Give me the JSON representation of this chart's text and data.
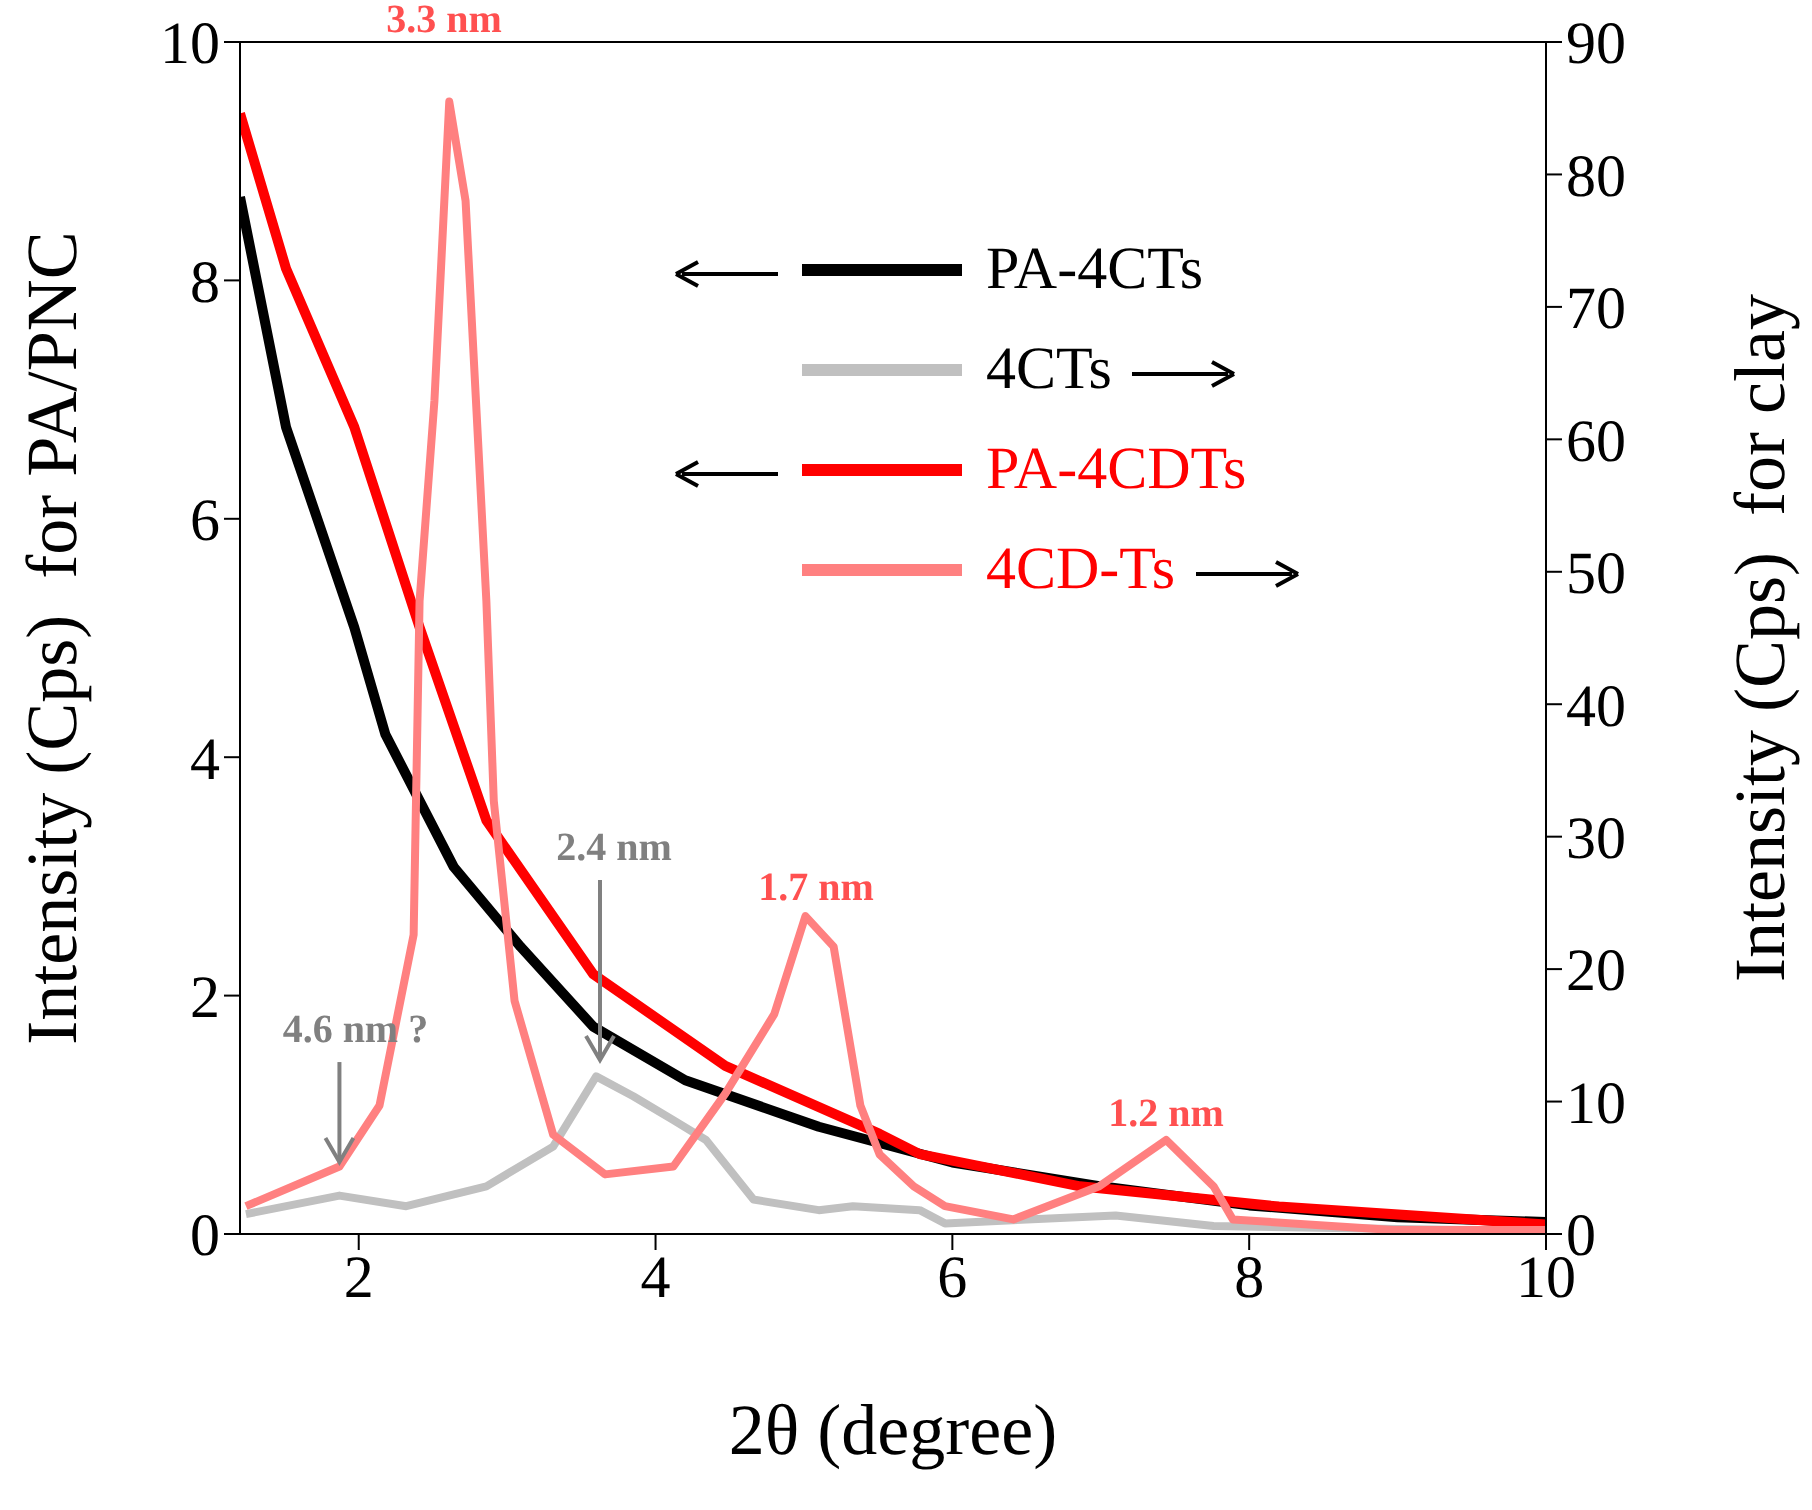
{
  "chart_data": {
    "type": "line",
    "xlabel": "2θ (degree)",
    "ylabel": "Intensity (Cps)  for PA/PNC",
    "y2label": "Intensity (Cps)  for clay",
    "xlim": [
      1.2,
      10
    ],
    "xticks": [
      2,
      4,
      6,
      8,
      10
    ],
    "ylim": [
      0,
      10
    ],
    "yticks": [
      0,
      2,
      4,
      6,
      8,
      10
    ],
    "y2lim": [
      0,
      90
    ],
    "y2ticks": [
      0,
      10,
      20,
      30,
      40,
      50,
      60,
      70,
      80,
      90
    ],
    "legend": "top right",
    "series": [
      {
        "name": "PA-4CTs",
        "color": "#000000",
        "x": [
          1.2,
          1.51,
          1.97,
          2.18,
          2.64,
          3.09,
          3.58,
          4.2,
          5.1,
          6,
          7,
          8,
          9,
          10
        ],
        "values": [
          8.7,
          6.77,
          5.09,
          4.19,
          3.08,
          2.41,
          1.74,
          1.29,
          0.9,
          0.6,
          0.4,
          0.24,
          0.14,
          0.1
        ]
      },
      {
        "name": "4CTs",
        "color": "#c0c0c0",
        "axis": "y2",
        "x": [
          1.24,
          1.87,
          2.32,
          2.86,
          3.31,
          3.6,
          3.85,
          4.12,
          4.34,
          4.66,
          5.1,
          5.33,
          5.78,
          5.95,
          7.1,
          7.76,
          10
        ],
        "values": [
          1.5,
          2.9,
          2.1,
          3.6,
          6.6,
          11.9,
          10.4,
          8.6,
          7.1,
          2.6,
          1.8,
          2.1,
          1.8,
          0.8,
          1.4,
          0.6,
          0.2
        ]
      },
      {
        "name": "PA-4CDTs",
        "color": "#ff0000",
        "x": [
          1.2,
          1.51,
          1.97,
          2.41,
          2.86,
          3.58,
          4.47,
          5.51,
          5.78,
          6.86,
          8.2,
          10
        ],
        "values": [
          9.4,
          8.1,
          6.77,
          5.09,
          3.47,
          2.18,
          1.41,
          0.84,
          0.67,
          0.4,
          0.23,
          0.08
        ]
      },
      {
        "name": "4CD-Ts",
        "color": "#ff8080",
        "axis": "y2",
        "x": [
          1.24,
          1.87,
          2.14,
          2.37,
          2.41,
          2.51,
          2.61,
          2.72,
          2.86,
          2.91,
          3.05,
          3.31,
          3.66,
          4.12,
          4.47,
          4.8,
          5.01,
          5.2,
          5.38,
          5.51,
          5.74,
          5.95,
          6.41,
          6.99,
          7.44,
          7.76,
          7.89,
          8.97,
          10
        ],
        "values": [
          2.1,
          5.1,
          9.7,
          22.6,
          47.8,
          62.9,
          85.5,
          78,
          47.8,
          32.7,
          17.6,
          7.5,
          4.5,
          5.1,
          10.6,
          16.6,
          24,
          21.7,
          9.7,
          6,
          3.6,
          2.1,
          1.1,
          3.6,
          7.1,
          3.6,
          1.1,
          0.3,
          0.3
        ]
      }
    ],
    "annotations": [
      "3.3 nm",
      {
        "text": "4.6 nm ?",
        "x": 1.87,
        "y": 0.57
      },
      "2.4 nm",
      "1.7 nm",
      "1.2 nm"
    ]
  }
}
